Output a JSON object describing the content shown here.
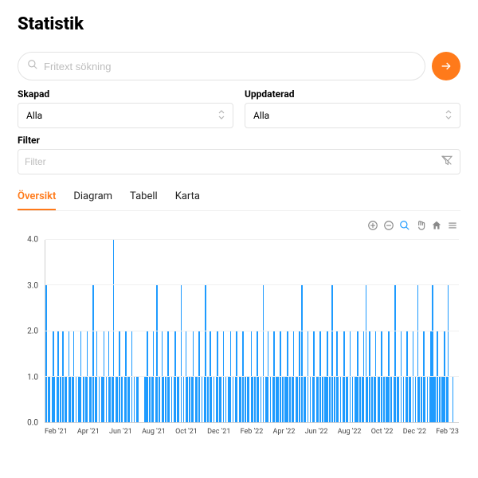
{
  "page": {
    "title": "Statistik"
  },
  "search": {
    "placeholder": "Fritext sökning"
  },
  "created": {
    "label": "Skapad",
    "value": "Alla"
  },
  "updated": {
    "label": "Uppdaterad",
    "value": "Alla"
  },
  "filter": {
    "label": "Filter",
    "placeholder": "Filter"
  },
  "tabs": {
    "items": [
      "Översikt",
      "Diagram",
      "Tabell",
      "Karta"
    ],
    "active_index": 0
  },
  "chart": {
    "type": "bar",
    "bar_color": "#1e9bff",
    "background_color": "#ffffff",
    "grid_color": "#f0f0f0",
    "axis_color": "#d0d0d0",
    "ylim": [
      0,
      4
    ],
    "yticks": [
      0.0,
      1.0,
      2.0,
      3.0,
      4.0
    ],
    "ytick_labels": [
      "0.0",
      "1.0",
      "2.0",
      "3.0",
      "4.0"
    ],
    "label_fontsize": 10,
    "xlabels": [
      "Feb '21",
      "Apr '21",
      "Jun '21",
      "Aug '21",
      "Oct '21",
      "Dec '21",
      "Feb '22",
      "Apr '22",
      "Jun '22",
      "Aug '22",
      "Oct '22",
      "Dec '22",
      "Feb '23"
    ],
    "values": [
      3,
      0,
      1,
      1,
      0,
      1,
      2,
      1,
      0,
      1,
      2,
      0,
      1,
      0,
      2,
      0,
      1,
      1,
      0,
      2,
      1,
      0,
      1,
      2,
      0,
      1,
      0,
      1,
      1,
      2,
      0,
      1,
      0,
      1,
      2,
      0,
      1,
      1,
      0,
      3,
      0,
      1,
      2,
      0,
      1,
      0,
      1,
      1,
      2,
      0,
      1,
      0,
      2,
      1,
      0,
      1,
      4,
      0,
      1,
      1,
      0,
      2,
      0,
      1,
      0,
      1,
      2,
      0,
      1,
      1,
      0,
      2,
      0,
      1,
      0,
      1,
      1,
      0,
      0,
      0,
      0,
      0,
      1,
      1,
      2,
      0,
      1,
      0,
      1,
      2,
      0,
      1,
      3,
      0,
      1,
      0,
      2,
      1,
      0,
      1,
      0,
      2,
      1,
      0,
      1,
      0,
      1,
      2,
      0,
      1,
      1,
      0,
      3,
      0,
      1,
      0,
      2,
      1,
      0,
      1,
      0,
      1,
      2,
      0,
      1,
      1,
      0,
      2,
      0,
      1,
      0,
      1,
      3,
      0,
      1,
      0,
      2,
      1,
      0,
      1,
      0,
      1,
      2,
      0,
      1,
      1,
      0,
      2,
      0,
      1,
      0,
      1,
      1,
      2,
      0,
      1,
      0,
      1,
      2,
      0,
      1,
      1,
      0,
      2,
      0,
      1,
      0,
      1,
      1,
      0,
      2,
      1,
      0,
      1,
      0,
      2,
      1,
      0,
      1,
      0,
      3,
      0,
      1,
      1,
      2,
      0,
      1,
      0,
      1,
      2,
      0,
      1,
      1,
      0,
      2,
      0,
      1,
      0,
      1,
      1,
      2,
      0,
      1,
      0,
      1,
      2,
      0,
      1,
      1,
      0,
      2,
      0,
      3,
      0,
      1,
      1,
      0,
      2,
      0,
      1,
      0,
      1,
      2,
      0,
      1,
      1,
      0,
      2,
      0,
      1,
      0,
      1,
      1,
      2,
      0,
      1,
      0,
      3,
      0,
      1,
      0,
      2,
      1,
      0,
      1,
      0,
      1,
      2,
      0,
      1,
      1,
      0,
      2,
      0,
      1,
      0,
      1,
      1,
      2,
      0,
      1,
      0,
      1,
      2,
      0,
      3,
      1,
      0,
      2,
      0,
      1,
      0,
      1,
      2,
      0,
      1,
      1,
      0,
      2,
      0,
      1,
      0,
      1,
      1,
      2,
      0,
      1,
      0,
      1,
      3,
      0,
      1,
      1,
      0,
      2,
      0,
      1,
      0,
      1,
      2,
      0,
      1,
      1,
      0,
      2,
      0,
      1,
      0,
      3,
      1,
      0,
      1,
      0,
      2,
      1,
      0,
      1,
      0,
      1,
      2,
      3,
      1,
      1,
      0,
      2,
      0,
      1,
      0,
      1,
      1,
      2,
      0,
      1,
      3,
      0,
      0,
      0,
      1,
      0,
      0,
      0,
      0
    ]
  },
  "toolbar": {
    "items": [
      "zoom-in",
      "zoom-out",
      "zoom-select",
      "pan",
      "home",
      "menu"
    ],
    "active": "zoom-select"
  }
}
